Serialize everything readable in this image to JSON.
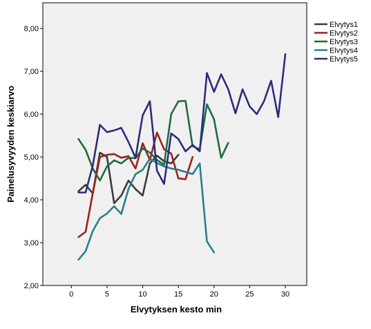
{
  "chart_data": {
    "type": "line",
    "xlabel": "Elvytyksen kesto min",
    "ylabel": "Painelusyvyyden keskiarvo",
    "xlim": [
      -4,
      33
    ],
    "ylim": [
      2.0,
      8.6
    ],
    "xticks": [
      0,
      5,
      10,
      15,
      20,
      25,
      30
    ],
    "xtick_labels": [
      "0",
      "5",
      "10",
      "15",
      "20",
      "25",
      "30"
    ],
    "yticks": [
      2,
      3,
      4,
      5,
      6,
      7,
      8
    ],
    "ytick_labels": [
      "2,00",
      "3,00",
      "4,00",
      "5,00",
      "6,00",
      "7,00",
      "8,00"
    ],
    "grid": false,
    "plot_background": "#f0f0f0",
    "legend_position": "right",
    "series": [
      {
        "name": "Elvytys1",
        "color": "#3b3b3b",
        "x": [
          1,
          2,
          3,
          4,
          5,
          6,
          7,
          8,
          9,
          10,
          11,
          12,
          13,
          14,
          15
        ],
        "y": [
          4.2,
          4.35,
          4.15,
          5.1,
          5.0,
          3.92,
          4.1,
          4.45,
          4.25,
          4.1,
          4.85,
          5.03,
          4.9,
          4.85,
          5.05
        ]
      },
      {
        "name": "Elvytys2",
        "color": "#9e1f1f",
        "x": [
          1,
          2,
          3,
          4,
          5,
          6,
          7,
          8,
          9,
          10,
          11,
          12,
          13,
          14,
          15,
          16,
          17
        ],
        "y": [
          3.13,
          3.25,
          4.15,
          5.0,
          5.05,
          5.07,
          4.98,
          5.02,
          4.73,
          5.32,
          4.93,
          5.57,
          5.18,
          5.08,
          4.5,
          4.48,
          5.0
        ]
      },
      {
        "name": "Elvytys3",
        "color": "#1e6b3a",
        "x": [
          1,
          2,
          3,
          4,
          5,
          6,
          7,
          8,
          9,
          10,
          11,
          12,
          13,
          14,
          15,
          16,
          17,
          18,
          19,
          20,
          21,
          22
        ],
        "y": [
          5.42,
          5.17,
          4.73,
          4.45,
          4.78,
          4.92,
          4.85,
          4.98,
          4.97,
          5.2,
          5.1,
          4.93,
          4.82,
          6.0,
          6.3,
          6.31,
          5.25,
          5.18,
          6.23,
          5.88,
          4.98,
          5.33
        ]
      },
      {
        "name": "Elvytys4",
        "color": "#2a7d8a",
        "x": [
          1,
          2,
          3,
          4,
          5,
          6,
          7,
          8,
          9,
          10,
          11,
          12,
          13,
          14,
          15,
          16,
          17,
          18,
          19,
          20
        ],
        "y": [
          2.6,
          2.8,
          3.27,
          3.57,
          3.68,
          3.85,
          3.67,
          4.25,
          4.6,
          4.7,
          4.96,
          4.86,
          4.78,
          4.73,
          4.7,
          4.65,
          4.6,
          4.85,
          3.03,
          2.77
        ]
      },
      {
        "name": "Elvytys5",
        "color": "#2b2b7e",
        "x": [
          1,
          2,
          3,
          4,
          5,
          6,
          7,
          8,
          9,
          10,
          11,
          12,
          13,
          14,
          15,
          16,
          17,
          18,
          19,
          20,
          21,
          22,
          23,
          24,
          25,
          26,
          27,
          28,
          29,
          30
        ],
        "y": [
          4.17,
          4.17,
          4.8,
          5.75,
          5.58,
          5.62,
          5.68,
          5.35,
          4.98,
          5.97,
          6.3,
          4.68,
          4.37,
          5.55,
          5.42,
          5.13,
          5.28,
          5.13,
          6.96,
          6.52,
          6.93,
          6.58,
          6.02,
          6.58,
          6.18,
          6.0,
          6.3,
          6.78,
          5.93,
          7.4
        ]
      }
    ]
  }
}
